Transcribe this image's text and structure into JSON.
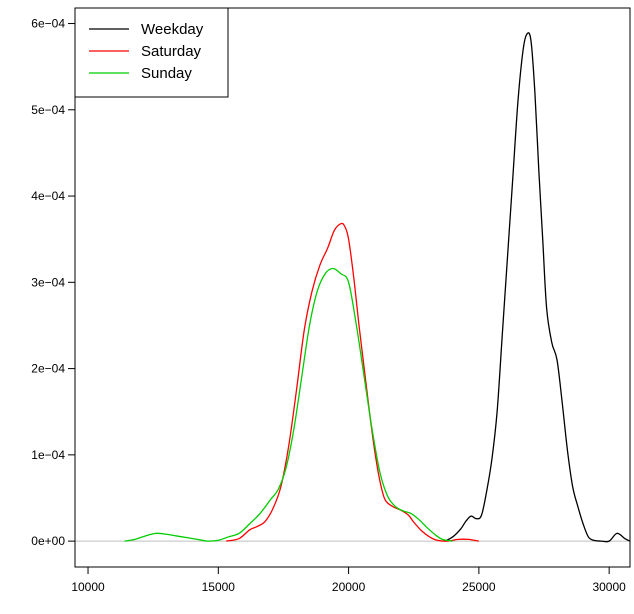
{
  "chart_data": {
    "type": "line",
    "title": "",
    "xlabel": "",
    "ylabel": "",
    "xlim": [
      9500,
      30800
    ],
    "ylim": [
      -3e-05,
      0.000618
    ],
    "xticks": [
      10000,
      15000,
      20000,
      25000,
      30000
    ],
    "xtick_labels": [
      "10000",
      "15000",
      "20000",
      "25000",
      "30000"
    ],
    "yticks": [
      0,
      0.0001,
      0.0002,
      0.0003,
      0.0004,
      0.0005,
      0.0006
    ],
    "ytick_labels": [
      "0e+00",
      "1e−04",
      "2e−04",
      "3e−04",
      "4e−04",
      "5e−04",
      "6e−04"
    ],
    "legend_position": "top-left",
    "baseline": {
      "y": 0,
      "color": "#bfbfbf"
    },
    "series": [
      {
        "name": "Weekday",
        "color": "#000000",
        "x": [
          23700,
          24000,
          24300,
          24500,
          24700,
          24900,
          25100,
          25300,
          25500,
          25700,
          25900,
          26100,
          26300,
          26500,
          26700,
          26850,
          27000,
          27150,
          27300,
          27450,
          27600,
          27800,
          28000,
          28200,
          28400,
          28600,
          28800,
          29000,
          29200,
          29400,
          29700,
          30000,
          30300,
          30600,
          30800
        ],
        "y": [
          0.0,
          5e-06,
          1.4e-05,
          2.3e-05,
          2.9e-05,
          2.6e-05,
          3e-05,
          5.8e-05,
          9.5e-05,
          0.00015,
          0.00024,
          0.00033,
          0.00042,
          0.00051,
          0.00057,
          0.000588,
          0.00058,
          0.00052,
          0.00043,
          0.00035,
          0.00027,
          0.00023,
          0.00021,
          0.00016,
          0.000105,
          6.3e-05,
          4e-05,
          2e-05,
          5e-06,
          1e-06,
          0.0,
          0.0,
          9e-06,
          3e-06,
          0.0
        ]
      },
      {
        "name": "Saturday",
        "color": "#ff0000",
        "x": [
          15300,
          15800,
          16200,
          16500,
          16800,
          17100,
          17400,
          17700,
          18000,
          18300,
          18600,
          18900,
          19200,
          19450,
          19700,
          19850,
          20000,
          20200,
          20400,
          20600,
          20800,
          21000,
          21200,
          21400,
          21700,
          22000,
          22300,
          22500,
          22800,
          23100,
          23400,
          23800,
          24200,
          24600,
          25000
        ],
        "y": [
          0.0,
          3e-06,
          1.3e-05,
          1.7e-05,
          2.3e-05,
          3.8e-05,
          6.3e-05,
          0.00011,
          0.000175,
          0.000245,
          0.00029,
          0.00032,
          0.00034,
          0.00036,
          0.000368,
          0.000365,
          0.00035,
          0.000305,
          0.00025,
          0.0002,
          0.00015,
          0.000105,
          7e-05,
          4.8e-05,
          4e-05,
          3.6e-05,
          3e-05,
          2.2e-05,
          1.2e-05,
          5e-06,
          1e-06,
          0.0,
          2e-06,
          2e-06,
          0.0
        ]
      },
      {
        "name": "Sunday",
        "color": "#00cd00",
        "x": [
          11400,
          11800,
          12200,
          12600,
          13000,
          13400,
          13800,
          14200,
          14600,
          15000,
          15400,
          15800,
          16200,
          16600,
          17000,
          17300,
          17600,
          17900,
          18200,
          18500,
          18800,
          19100,
          19400,
          19700,
          20000,
          20300,
          20600,
          20900,
          21200,
          21500,
          21800,
          22100,
          22400,
          22700,
          23000,
          23300,
          23600,
          24000
        ],
        "y": [
          0.0,
          2e-06,
          6e-06,
          9e-06,
          8e-06,
          6e-06,
          4e-06,
          2e-06,
          0.0,
          1e-06,
          5e-06,
          9e-06,
          2e-05,
          3.2e-05,
          4.8e-05,
          6e-05,
          8.5e-05,
          0.00013,
          0.00019,
          0.00025,
          0.00029,
          0.00031,
          0.000316,
          0.00031,
          0.0003,
          0.00025,
          0.00019,
          0.00013,
          8e-05,
          5.2e-05,
          4e-05,
          3.5e-05,
          3.2e-05,
          2.5e-05,
          1.6e-05,
          8e-06,
          2e-06,
          0.0
        ]
      }
    ]
  }
}
